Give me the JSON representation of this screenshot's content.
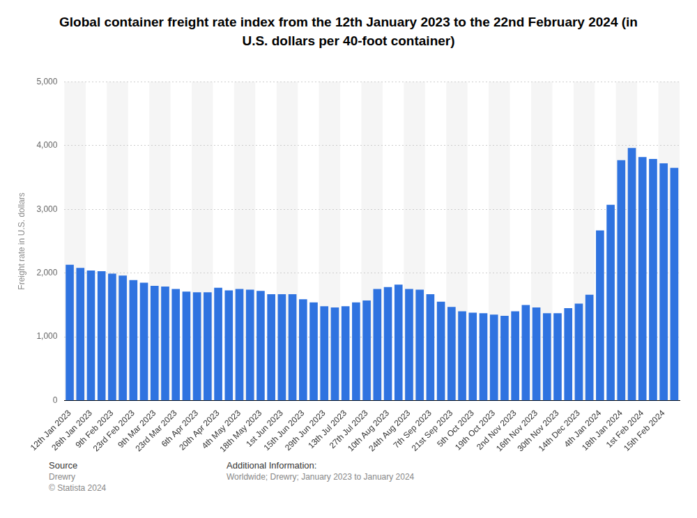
{
  "chart_data": {
    "type": "bar",
    "title": "Global container freight rate index from the 12th January 2023 to the 22nd February 2024 (in U.S. dollars per 40-foot container)",
    "y_label": "Freight rate in U.S. dollars",
    "categories": [
      "12th Jan 2023",
      null,
      "26th Jan 2023",
      null,
      "9th Feb 2023",
      null,
      "23rd Feb 2023",
      null,
      "9th Mar 2023",
      null,
      "23rd Mar 2023",
      null,
      "6th Apr 2023",
      null,
      "20th Apr 2023",
      null,
      "4th May 2023",
      null,
      "18th May 2023",
      null,
      "1st Jun 2023",
      null,
      "15th Jun 2023",
      null,
      "29th Jun 2023",
      null,
      "13th Jul 2023",
      null,
      "27th Jul 2023",
      null,
      "10th Aug 2023",
      null,
      "24th Aug 2023",
      null,
      "7th Sep 2023",
      null,
      "21st Sep 2023",
      null,
      "5th Oct 2023",
      null,
      "19th Oct 2023",
      null,
      "2nd Nov 2023",
      null,
      "16th Nov 2023",
      null,
      "30th Nov 2023",
      null,
      "14th Dec 2023",
      null,
      "4th Jan 2024",
      null,
      "18th Jan 2024",
      null,
      "1st Feb 2024",
      null,
      "15th Feb 2024",
      null
    ],
    "values": [
      2130,
      2080,
      2040,
      2030,
      1990,
      1960,
      1890,
      1850,
      1800,
      1790,
      1750,
      1710,
      1700,
      1700,
      1770,
      1730,
      1750,
      1740,
      1720,
      1670,
      1670,
      1670,
      1590,
      1540,
      1480,
      1460,
      1480,
      1540,
      1570,
      1750,
      1780,
      1820,
      1750,
      1740,
      1670,
      1550,
      1470,
      1400,
      1380,
      1370,
      1350,
      1330,
      1400,
      1500,
      1460,
      1370,
      1370,
      1450,
      1520,
      1660,
      2670,
      3070,
      3770,
      3960,
      3820,
      3790,
      3720,
      3650
    ],
    "color": "#2f73e0",
    "ylim": [
      0,
      5000
    ],
    "yticks": [
      0,
      {
        "value": 1000,
        "label": "1,000"
      },
      {
        "value": 2000,
        "label": "2,000"
      },
      {
        "value": 3000,
        "label": "3,000"
      },
      {
        "value": 4000,
        "label": "4,000"
      },
      {
        "value": 5000,
        "label": "5,000"
      }
    ],
    "grid": true
  },
  "footer": {
    "source_heading": "Source",
    "source": "Drewry",
    "copyright": "© Statista 2024",
    "info_heading": "Additional Information:",
    "info": "Worldwide; Drewry; January 2023 to January 2024"
  }
}
